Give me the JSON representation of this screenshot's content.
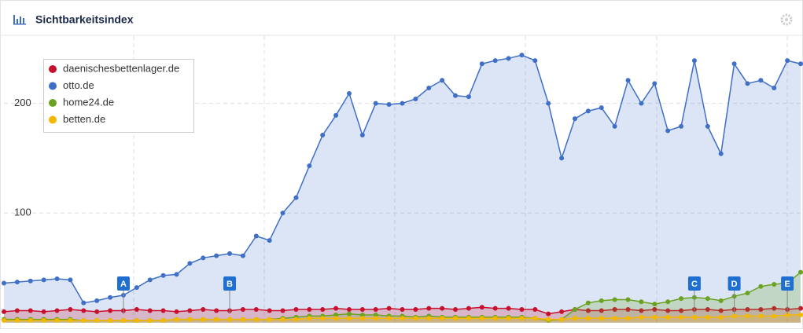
{
  "header": {
    "title": "Sichtbarkeitsindex"
  },
  "chart_data": {
    "type": "area",
    "ylim": [
      -3,
      262
    ],
    "yticks": [
      100,
      200
    ],
    "grid": true,
    "legend": "top-left",
    "series": [
      {
        "name": "otto.de",
        "color": "#3f6fc6",
        "values": [
          36,
          37,
          38,
          39,
          40,
          39,
          18,
          20,
          23,
          25,
          32,
          39,
          43,
          44,
          54,
          59,
          61,
          63,
          61,
          79,
          75,
          100,
          114,
          143,
          171,
          189,
          209,
          171,
          200,
          199,
          200,
          204,
          214,
          221,
          207,
          206,
          236,
          239,
          241,
          244,
          239,
          200,
          150,
          186,
          193,
          196,
          179,
          221,
          200,
          218,
          175,
          179,
          239,
          179,
          154,
          236,
          218,
          221,
          214,
          239,
          236
        ]
      },
      {
        "name": "daenischesbettenlager.de",
        "color": "#c8102e",
        "values": [
          10,
          11,
          11,
          10,
          11,
          12,
          11,
          10,
          11,
          11,
          12,
          11,
          11,
          10,
          11,
          12,
          11,
          11,
          12,
          12,
          11,
          11,
          12,
          12,
          12,
          13,
          12,
          12,
          12,
          13,
          12,
          12,
          13,
          13,
          12,
          13,
          14,
          13,
          13,
          12,
          12,
          8,
          10,
          12,
          11,
          11,
          12,
          12,
          11,
          12,
          11,
          11,
          12,
          12,
          11,
          12,
          12,
          12,
          13,
          12,
          13
        ]
      },
      {
        "name": "home24.de",
        "color": "#6aa321",
        "values": [
          3,
          3,
          3,
          3,
          3,
          3,
          2,
          2,
          2,
          2,
          2,
          2,
          2,
          3,
          3,
          3,
          3,
          3,
          3,
          3,
          3,
          4,
          5,
          6,
          6,
          7,
          8,
          7,
          7,
          6,
          6,
          5,
          6,
          5,
          5,
          5,
          5,
          5,
          5,
          5,
          4,
          2,
          3,
          12,
          18,
          20,
          21,
          21,
          19,
          17,
          19,
          22,
          23,
          22,
          20,
          24,
          27,
          33,
          35,
          36,
          46
        ]
      },
      {
        "name": "betten.de",
        "color": "#f5b800",
        "values": [
          2,
          2,
          2,
          2,
          2,
          2,
          2,
          2,
          2,
          2,
          2,
          2,
          2,
          3,
          3,
          3,
          3,
          3,
          3,
          3,
          3,
          3,
          3,
          4,
          4,
          4,
          4,
          4,
          4,
          4,
          4,
          4,
          4,
          4,
          4,
          4,
          4,
          4,
          4,
          4,
          4,
          3,
          3,
          4,
          4,
          4,
          4,
          4,
          5,
          5,
          5,
          5,
          5,
          5,
          5,
          6,
          6,
          6,
          6,
          7,
          7
        ]
      }
    ],
    "draw_order": [
      0,
      1,
      2,
      3
    ],
    "legend_order": [
      1,
      0,
      2,
      3
    ],
    "annotations": [
      {
        "label": "A",
        "at": 9
      },
      {
        "label": "B",
        "at": 17
      },
      {
        "label": "C",
        "at": 52
      },
      {
        "label": "D",
        "at": 55
      },
      {
        "label": "E",
        "at": 59
      }
    ]
  }
}
